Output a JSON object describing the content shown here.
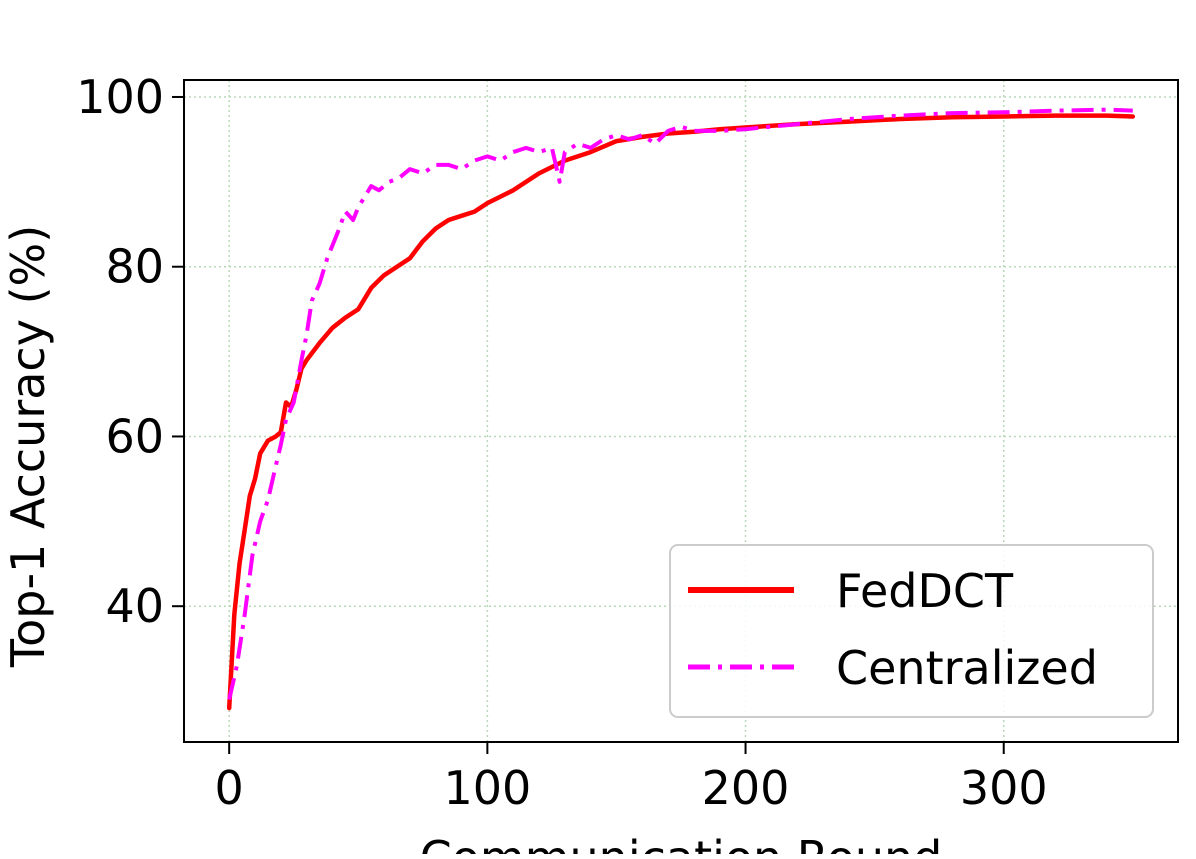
{
  "chart_data": {
    "type": "line",
    "xlabel": "Communication Round",
    "ylabel": "Top-1 Accuracy (%)",
    "xlim": [
      -17.5,
      367.5
    ],
    "ylim": [
      24,
      102
    ],
    "xticks": [
      0,
      100,
      200,
      300
    ],
    "yticks": [
      40,
      60,
      80,
      100
    ],
    "grid": true,
    "legend_position": "lower-right",
    "series": [
      {
        "name": "FedDCT",
        "color": "#ff0000",
        "line_style": "solid",
        "x": [
          0,
          2,
          4,
          6,
          8,
          10,
          12,
          15,
          18,
          20,
          22,
          24,
          26,
          28,
          30,
          35,
          40,
          45,
          50,
          55,
          60,
          65,
          70,
          75,
          80,
          85,
          90,
          95,
          100,
          110,
          120,
          130,
          140,
          150,
          160,
          170,
          180,
          190,
          200,
          220,
          240,
          260,
          280,
          300,
          320,
          340,
          350
        ],
        "y": [
          28,
          39,
          45,
          49,
          53,
          55,
          58,
          59.5,
          60,
          60.5,
          64,
          63.5,
          65.5,
          68,
          69,
          71,
          72.8,
          74,
          75,
          77.5,
          79,
          80,
          81,
          83,
          84.5,
          85.5,
          86,
          86.5,
          87.5,
          89,
          91,
          92.5,
          93.5,
          94.8,
          95.3,
          95.7,
          95.9,
          96.2,
          96.4,
          96.8,
          97.1,
          97.4,
          97.6,
          97.7,
          97.8,
          97.8,
          97.7
        ]
      },
      {
        "name": "Centralized",
        "color": "#ff00ff",
        "line_style": "dashdot",
        "x": [
          0,
          3,
          6,
          9,
          12,
          15,
          18,
          20,
          22,
          25,
          28,
          30,
          32,
          35,
          38,
          42,
          45,
          48,
          50,
          52,
          55,
          58,
          62,
          66,
          70,
          75,
          80,
          85,
          90,
          95,
          100,
          105,
          110,
          115,
          120,
          125,
          128,
          130,
          135,
          140,
          145,
          150,
          155,
          160,
          165,
          170,
          175,
          180,
          190,
          200,
          220,
          240,
          260,
          280,
          300,
          320,
          340,
          350
        ],
        "y": [
          29,
          33,
          39,
          46,
          50,
          52.5,
          56.5,
          59,
          62,
          64,
          69,
          72,
          76,
          78,
          81,
          84,
          86.5,
          85.5,
          87,
          88,
          89.5,
          89,
          90,
          90.5,
          91.5,
          91,
          92,
          92,
          91.5,
          92.5,
          93,
          92.5,
          93.5,
          94,
          93.5,
          94,
          90,
          93.5,
          94.5,
          94,
          95,
          95.5,
          95,
          95.5,
          94.5,
          96,
          96.5,
          96,
          96,
          96.2,
          96.8,
          97.4,
          97.8,
          98.1,
          98.2,
          98.4,
          98.5,
          98.4
        ]
      }
    ]
  }
}
